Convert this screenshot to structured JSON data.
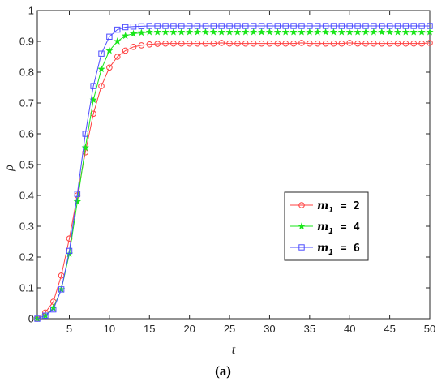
{
  "chart_data": {
    "type": "line",
    "xlabel": "t",
    "ylabel": "ρ",
    "xlim": [
      1,
      50
    ],
    "ylim": [
      0,
      1
    ],
    "xticks": [
      5,
      10,
      15,
      20,
      25,
      30,
      35,
      40,
      45,
      50
    ],
    "yticks": [
      0,
      0.1,
      0.2,
      0.3,
      0.4,
      0.5,
      0.6,
      0.7,
      0.8,
      0.9,
      1
    ],
    "ytick_labels": [
      "0",
      "0.1",
      "0.2",
      "0.3",
      "0.4",
      "0.5",
      "0.6",
      "0.7",
      "0.8",
      "0.9",
      "1"
    ],
    "grid": false,
    "legend_position": "right-middle",
    "x": [
      1,
      2,
      3,
      4,
      5,
      6,
      7,
      8,
      9,
      10,
      11,
      12,
      13,
      14,
      15,
      16,
      17,
      18,
      19,
      20,
      21,
      22,
      23,
      24,
      25,
      26,
      27,
      28,
      29,
      30,
      31,
      32,
      33,
      34,
      35,
      36,
      37,
      38,
      39,
      40,
      41,
      42,
      43,
      44,
      45,
      46,
      47,
      48,
      49,
      50
    ],
    "series": [
      {
        "name_prefix": "m",
        "name_sub": "1",
        "name_suffix": " = 2",
        "color": "#ff4040",
        "marker": "circle",
        "values": [
          0.0,
          0.02,
          0.055,
          0.14,
          0.26,
          0.4,
          0.54,
          0.665,
          0.755,
          0.815,
          0.85,
          0.87,
          0.882,
          0.887,
          0.89,
          0.892,
          0.893,
          0.893,
          0.893,
          0.893,
          0.893,
          0.893,
          0.893,
          0.895,
          0.893,
          0.893,
          0.893,
          0.893,
          0.893,
          0.893,
          0.893,
          0.893,
          0.893,
          0.895,
          0.893,
          0.893,
          0.893,
          0.893,
          0.893,
          0.895,
          0.893,
          0.893,
          0.893,
          0.893,
          0.893,
          0.893,
          0.893,
          0.893,
          0.893,
          0.895
        ]
      },
      {
        "name_prefix": "m",
        "name_sub": "1",
        "name_suffix": " = 4",
        "color": "#19e619",
        "marker": "star",
        "values": [
          0.0,
          0.01,
          0.035,
          0.095,
          0.21,
          0.38,
          0.555,
          0.71,
          0.81,
          0.87,
          0.9,
          0.918,
          0.925,
          0.928,
          0.93,
          0.93,
          0.93,
          0.93,
          0.93,
          0.93,
          0.93,
          0.93,
          0.93,
          0.93,
          0.93,
          0.93,
          0.93,
          0.93,
          0.93,
          0.93,
          0.93,
          0.93,
          0.93,
          0.93,
          0.93,
          0.93,
          0.93,
          0.93,
          0.93,
          0.93,
          0.93,
          0.93,
          0.93,
          0.93,
          0.93,
          0.93,
          0.93,
          0.93,
          0.93,
          0.93
        ]
      },
      {
        "name_prefix": "m",
        "name_sub": "1",
        "name_suffix": " = 6",
        "color": "#4d4dff",
        "marker": "square",
        "values": [
          0.0,
          0.01,
          0.03,
          0.095,
          0.22,
          0.405,
          0.6,
          0.755,
          0.86,
          0.915,
          0.938,
          0.946,
          0.948,
          0.949,
          0.95,
          0.95,
          0.95,
          0.95,
          0.95,
          0.95,
          0.95,
          0.95,
          0.95,
          0.95,
          0.95,
          0.95,
          0.95,
          0.95,
          0.95,
          0.95,
          0.95,
          0.95,
          0.95,
          0.95,
          0.95,
          0.95,
          0.95,
          0.95,
          0.95,
          0.95,
          0.95,
          0.95,
          0.95,
          0.95,
          0.95,
          0.95,
          0.95,
          0.95,
          0.95,
          0.95
        ]
      }
    ]
  },
  "caption": "(a)"
}
